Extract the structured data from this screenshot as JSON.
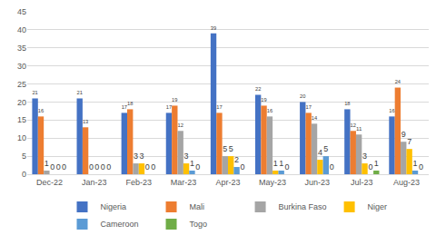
{
  "chart_data": {
    "type": "bar",
    "categories": [
      "Dec-22",
      "Jan-23",
      "Feb-23",
      "Mar-23",
      "Apr-23",
      "May-23",
      "Jun-23",
      "Jul-23",
      "Aug-23"
    ],
    "series": [
      {
        "name": "Nigeria",
        "color": "#4472c4",
        "values": [
          21,
          21,
          17,
          17,
          39,
          22,
          20,
          18,
          16
        ]
      },
      {
        "name": "Mali",
        "color": "#ed7d31",
        "values": [
          16,
          13,
          18,
          19,
          17,
          19,
          17,
          12,
          24
        ]
      },
      {
        "name": "Burkina Faso",
        "color": "#a5a5a5",
        "values": [
          1,
          0,
          3,
          12,
          5,
          16,
          14,
          11,
          9
        ]
      },
      {
        "name": "Niger",
        "color": "#ffc000",
        "values": [
          0,
          0,
          3,
          3,
          5,
          1,
          4,
          3,
          7
        ]
      },
      {
        "name": "Cameroon",
        "color": "#5b9bd5",
        "values": [
          0,
          0,
          0,
          1,
          2,
          1,
          5,
          0,
          1
        ]
      },
      {
        "name": "Togo",
        "color": "#70ad47",
        "values": [
          0,
          0,
          0,
          0,
          0,
          0,
          0,
          1,
          0
        ]
      }
    ],
    "ylim": [
      0,
      45
    ],
    "yticks": [
      0,
      5,
      10,
      15,
      20,
      25,
      30,
      35,
      40,
      45
    ],
    "grid": true,
    "legend": "bottom",
    "data_labels": true
  }
}
